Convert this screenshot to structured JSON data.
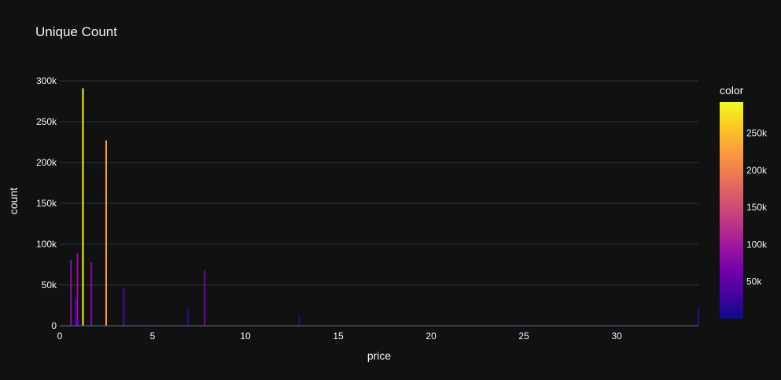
{
  "chart_data": {
    "type": "bar",
    "title": "Unique Count",
    "xlabel": "price",
    "ylabel": "count",
    "xlim": [
      0,
      34.4
    ],
    "ylim": [
      0,
      300000
    ],
    "x_ticks": [
      0,
      5,
      10,
      15,
      20,
      25,
      30
    ],
    "x_tick_labels": [
      "0",
      "5",
      "10",
      "15",
      "20",
      "25",
      "30"
    ],
    "y_ticks": [
      0,
      50000,
      100000,
      150000,
      200000,
      250000,
      300000
    ],
    "y_tick_labels": [
      "0",
      "50k",
      "100k",
      "150k",
      "200k",
      "250k",
      "300k"
    ],
    "grid": true,
    "colorbar": {
      "title": "color",
      "range": [
        0,
        292000
      ],
      "ticks": [
        50000,
        100000,
        150000,
        200000,
        250000
      ],
      "tick_labels": [
        "50k",
        "100k",
        "150k",
        "200k",
        "250k"
      ],
      "colorscale": [
        "#0d0887",
        "#46039f",
        "#7201a8",
        "#9c179e",
        "#bd3786",
        "#d8576b",
        "#ed7953",
        "#fb9f3a",
        "#fdca26",
        "#f0f921"
      ]
    },
    "x": [
      0.6,
      0.85,
      0.95,
      1.05,
      1.25,
      1.7,
      2.5,
      3.45,
      3.9,
      5.15,
      6.9,
      7.8,
      12.9,
      34.4
    ],
    "values": [
      81000,
      35000,
      89000,
      7000,
      291000,
      78000,
      227000,
      46000,
      3000,
      2000,
      21000,
      68000,
      12000,
      22000
    ]
  }
}
